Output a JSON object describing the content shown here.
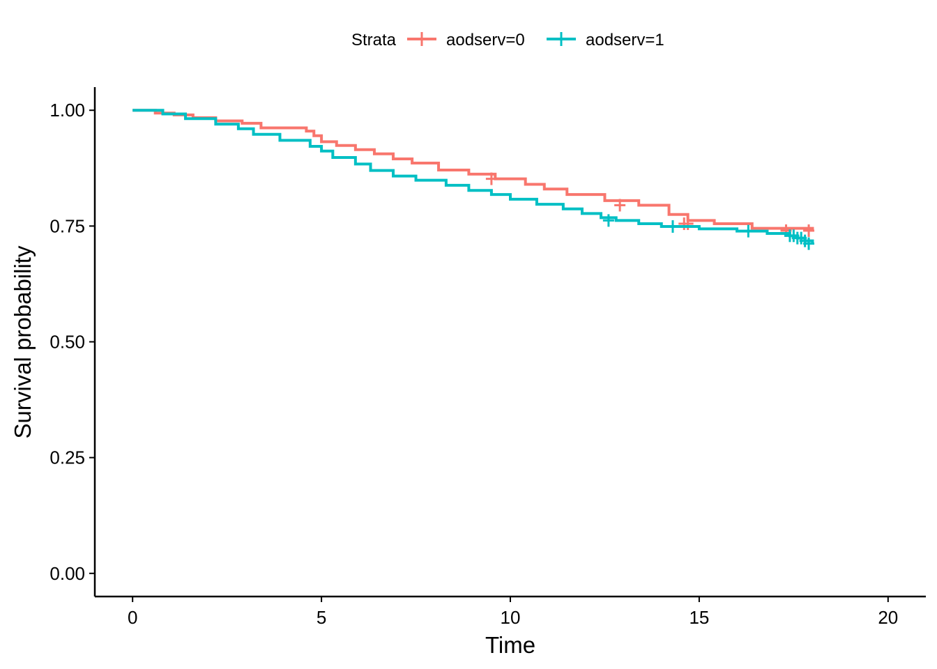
{
  "chart_data": {
    "type": "line",
    "subtype": "kaplan-meier step",
    "xlabel": "Time",
    "ylabel": "Survival probability",
    "xlim": [
      -1,
      21
    ],
    "ylim": [
      -0.05,
      1.05
    ],
    "x_ticks": [
      0,
      5,
      10,
      15,
      20
    ],
    "y_ticks": [
      0.0,
      0.25,
      0.5,
      0.75,
      1.0
    ],
    "x_tick_labels": [
      "0",
      "5",
      "10",
      "15",
      "20"
    ],
    "y_tick_labels": [
      "0.00",
      "0.25",
      "0.50",
      "0.75",
      "1.00"
    ],
    "grid": false,
    "legend": {
      "title": "Strata",
      "position": "top",
      "entries": [
        "aodserv=0",
        "aodserv=1"
      ]
    },
    "series": [
      {
        "name": "aodserv=0",
        "color": "#F8766D",
        "x": [
          0,
          0.6,
          1.1,
          1.6,
          2.2,
          2.9,
          3.4,
          4.6,
          4.8,
          5.0,
          5.4,
          5.9,
          6.4,
          6.9,
          7.4,
          8.1,
          8.9,
          9.6,
          10.4,
          10.9,
          11.5,
          12.5,
          13.4,
          14.2,
          14.7,
          15.4,
          16.4,
          18.0
        ],
        "y": [
          1.0,
          0.994,
          0.99,
          0.984,
          0.977,
          0.972,
          0.962,
          0.955,
          0.945,
          0.932,
          0.924,
          0.915,
          0.906,
          0.895,
          0.886,
          0.871,
          0.862,
          0.852,
          0.84,
          0.83,
          0.818,
          0.805,
          0.795,
          0.775,
          0.762,
          0.755,
          0.745,
          0.74
        ],
        "censored_x": [
          9.5,
          12.9,
          14.6,
          14.7,
          17.3,
          17.9
        ],
        "censored_y": [
          0.852,
          0.795,
          0.755,
          0.755,
          0.74,
          0.74
        ]
      },
      {
        "name": "aodserv=1",
        "color": "#00BFC4",
        "x": [
          0,
          0.8,
          1.4,
          2.2,
          2.8,
          3.2,
          3.9,
          4.7,
          5.0,
          5.3,
          5.9,
          6.3,
          6.9,
          7.5,
          8.3,
          8.9,
          9.5,
          10.0,
          10.7,
          11.4,
          11.9,
          12.4,
          12.8,
          13.4,
          14.0,
          15.0,
          16.0,
          16.8,
          17.4,
          17.6,
          17.8,
          18.0
        ],
        "y": [
          1.0,
          0.992,
          0.982,
          0.97,
          0.96,
          0.948,
          0.935,
          0.922,
          0.912,
          0.898,
          0.884,
          0.87,
          0.858,
          0.849,
          0.838,
          0.827,
          0.818,
          0.808,
          0.797,
          0.787,
          0.777,
          0.768,
          0.762,
          0.755,
          0.749,
          0.744,
          0.739,
          0.734,
          0.729,
          0.724,
          0.718,
          0.712
        ],
        "censored_x": [
          12.6,
          14.3,
          16.3,
          17.4,
          17.5,
          17.6,
          17.7,
          17.8,
          17.9
        ],
        "censored_y": [
          0.762,
          0.749,
          0.739,
          0.729,
          0.729,
          0.724,
          0.724,
          0.718,
          0.712
        ]
      }
    ]
  }
}
